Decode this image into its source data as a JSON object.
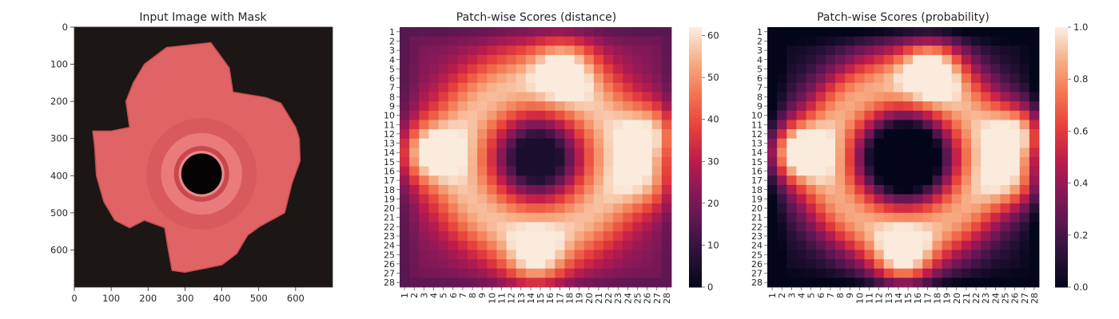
{
  "chart_data": [
    {
      "type": "image",
      "title": "Input Image with Mask",
      "xticks": [
        0,
        100,
        200,
        300,
        400,
        500,
        600
      ],
      "yticks": [
        0,
        100,
        200,
        300,
        400,
        500,
        600
      ],
      "xlim": [
        0,
        700
      ],
      "ylim": [
        700,
        0
      ]
    },
    {
      "type": "heatmap",
      "title": "Patch-wise Scores (distance)",
      "rows": 28,
      "cols": 28,
      "row_labels": [
        "1",
        "2",
        "3",
        "4",
        "5",
        "6",
        "7",
        "8",
        "9",
        "10",
        "11",
        "12",
        "13",
        "14",
        "15",
        "16",
        "17",
        "18",
        "19",
        "20",
        "21",
        "22",
        "23",
        "24",
        "25",
        "26",
        "27",
        "28"
      ],
      "col_labels": [
        "1",
        "2",
        "3",
        "4",
        "5",
        "6",
        "7",
        "8",
        "9",
        "10",
        "11",
        "12",
        "13",
        "14",
        "15",
        "16",
        "17",
        "18",
        "19",
        "20",
        "21",
        "22",
        "23",
        "24",
        "25",
        "26",
        "27",
        "28"
      ],
      "colorbar_ticks": [
        0,
        10,
        20,
        30,
        40,
        50,
        60
      ],
      "vmin": 0,
      "vmax": 62,
      "colormap": "rocket"
    },
    {
      "type": "heatmap",
      "title": "Patch-wise Scores (probability)",
      "rows": 28,
      "cols": 28,
      "row_labels": [
        "1",
        "2",
        "3",
        "4",
        "5",
        "6",
        "7",
        "8",
        "9",
        "10",
        "11",
        "12",
        "13",
        "14",
        "15",
        "16",
        "17",
        "18",
        "19",
        "20",
        "21",
        "22",
        "23",
        "24",
        "25",
        "26",
        "27",
        "28"
      ],
      "col_labels": [
        "1",
        "2",
        "3",
        "4",
        "5",
        "6",
        "7",
        "8",
        "9",
        "10",
        "11",
        "12",
        "13",
        "14",
        "15",
        "16",
        "17",
        "18",
        "19",
        "20",
        "21",
        "22",
        "23",
        "24",
        "25",
        "26",
        "27",
        "28"
      ],
      "colorbar_ticks": [
        "0.0",
        "0.2",
        "0.4",
        "0.6",
        "0.8",
        "1.0"
      ],
      "vmin": 0,
      "vmax": 1,
      "colormap": "rocket"
    }
  ]
}
